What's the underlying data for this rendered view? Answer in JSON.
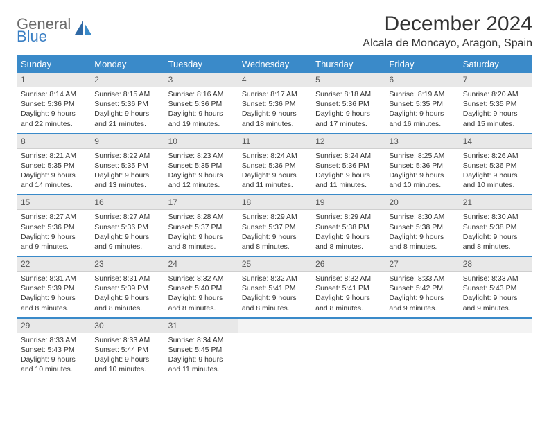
{
  "brand": {
    "part1": "General",
    "part2": "Blue",
    "color1": "#6a6a6a",
    "color2": "#3a7fc4"
  },
  "title": "December 2024",
  "location": "Alcala de Moncayo, Aragon, Spain",
  "header_bg": "#3a8ac9",
  "header_fg": "#ffffff",
  "daynum_bg": "#e8e8e8",
  "border_color": "#3a8ac9",
  "day_headers": [
    "Sunday",
    "Monday",
    "Tuesday",
    "Wednesday",
    "Thursday",
    "Friday",
    "Saturday"
  ],
  "weeks": [
    [
      {
        "n": "1",
        "sr": "Sunrise: 8:14 AM",
        "ss": "Sunset: 5:36 PM",
        "d1": "Daylight: 9 hours",
        "d2": "and 22 minutes."
      },
      {
        "n": "2",
        "sr": "Sunrise: 8:15 AM",
        "ss": "Sunset: 5:36 PM",
        "d1": "Daylight: 9 hours",
        "d2": "and 21 minutes."
      },
      {
        "n": "3",
        "sr": "Sunrise: 8:16 AM",
        "ss": "Sunset: 5:36 PM",
        "d1": "Daylight: 9 hours",
        "d2": "and 19 minutes."
      },
      {
        "n": "4",
        "sr": "Sunrise: 8:17 AM",
        "ss": "Sunset: 5:36 PM",
        "d1": "Daylight: 9 hours",
        "d2": "and 18 minutes."
      },
      {
        "n": "5",
        "sr": "Sunrise: 8:18 AM",
        "ss": "Sunset: 5:36 PM",
        "d1": "Daylight: 9 hours",
        "d2": "and 17 minutes."
      },
      {
        "n": "6",
        "sr": "Sunrise: 8:19 AM",
        "ss": "Sunset: 5:35 PM",
        "d1": "Daylight: 9 hours",
        "d2": "and 16 minutes."
      },
      {
        "n": "7",
        "sr": "Sunrise: 8:20 AM",
        "ss": "Sunset: 5:35 PM",
        "d1": "Daylight: 9 hours",
        "d2": "and 15 minutes."
      }
    ],
    [
      {
        "n": "8",
        "sr": "Sunrise: 8:21 AM",
        "ss": "Sunset: 5:35 PM",
        "d1": "Daylight: 9 hours",
        "d2": "and 14 minutes."
      },
      {
        "n": "9",
        "sr": "Sunrise: 8:22 AM",
        "ss": "Sunset: 5:35 PM",
        "d1": "Daylight: 9 hours",
        "d2": "and 13 minutes."
      },
      {
        "n": "10",
        "sr": "Sunrise: 8:23 AM",
        "ss": "Sunset: 5:35 PM",
        "d1": "Daylight: 9 hours",
        "d2": "and 12 minutes."
      },
      {
        "n": "11",
        "sr": "Sunrise: 8:24 AM",
        "ss": "Sunset: 5:36 PM",
        "d1": "Daylight: 9 hours",
        "d2": "and 11 minutes."
      },
      {
        "n": "12",
        "sr": "Sunrise: 8:24 AM",
        "ss": "Sunset: 5:36 PM",
        "d1": "Daylight: 9 hours",
        "d2": "and 11 minutes."
      },
      {
        "n": "13",
        "sr": "Sunrise: 8:25 AM",
        "ss": "Sunset: 5:36 PM",
        "d1": "Daylight: 9 hours",
        "d2": "and 10 minutes."
      },
      {
        "n": "14",
        "sr": "Sunrise: 8:26 AM",
        "ss": "Sunset: 5:36 PM",
        "d1": "Daylight: 9 hours",
        "d2": "and 10 minutes."
      }
    ],
    [
      {
        "n": "15",
        "sr": "Sunrise: 8:27 AM",
        "ss": "Sunset: 5:36 PM",
        "d1": "Daylight: 9 hours",
        "d2": "and 9 minutes."
      },
      {
        "n": "16",
        "sr": "Sunrise: 8:27 AM",
        "ss": "Sunset: 5:36 PM",
        "d1": "Daylight: 9 hours",
        "d2": "and 9 minutes."
      },
      {
        "n": "17",
        "sr": "Sunrise: 8:28 AM",
        "ss": "Sunset: 5:37 PM",
        "d1": "Daylight: 9 hours",
        "d2": "and 8 minutes."
      },
      {
        "n": "18",
        "sr": "Sunrise: 8:29 AM",
        "ss": "Sunset: 5:37 PM",
        "d1": "Daylight: 9 hours",
        "d2": "and 8 minutes."
      },
      {
        "n": "19",
        "sr": "Sunrise: 8:29 AM",
        "ss": "Sunset: 5:38 PM",
        "d1": "Daylight: 9 hours",
        "d2": "and 8 minutes."
      },
      {
        "n": "20",
        "sr": "Sunrise: 8:30 AM",
        "ss": "Sunset: 5:38 PM",
        "d1": "Daylight: 9 hours",
        "d2": "and 8 minutes."
      },
      {
        "n": "21",
        "sr": "Sunrise: 8:30 AM",
        "ss": "Sunset: 5:38 PM",
        "d1": "Daylight: 9 hours",
        "d2": "and 8 minutes."
      }
    ],
    [
      {
        "n": "22",
        "sr": "Sunrise: 8:31 AM",
        "ss": "Sunset: 5:39 PM",
        "d1": "Daylight: 9 hours",
        "d2": "and 8 minutes."
      },
      {
        "n": "23",
        "sr": "Sunrise: 8:31 AM",
        "ss": "Sunset: 5:39 PM",
        "d1": "Daylight: 9 hours",
        "d2": "and 8 minutes."
      },
      {
        "n": "24",
        "sr": "Sunrise: 8:32 AM",
        "ss": "Sunset: 5:40 PM",
        "d1": "Daylight: 9 hours",
        "d2": "and 8 minutes."
      },
      {
        "n": "25",
        "sr": "Sunrise: 8:32 AM",
        "ss": "Sunset: 5:41 PM",
        "d1": "Daylight: 9 hours",
        "d2": "and 8 minutes."
      },
      {
        "n": "26",
        "sr": "Sunrise: 8:32 AM",
        "ss": "Sunset: 5:41 PM",
        "d1": "Daylight: 9 hours",
        "d2": "and 8 minutes."
      },
      {
        "n": "27",
        "sr": "Sunrise: 8:33 AM",
        "ss": "Sunset: 5:42 PM",
        "d1": "Daylight: 9 hours",
        "d2": "and 9 minutes."
      },
      {
        "n": "28",
        "sr": "Sunrise: 8:33 AM",
        "ss": "Sunset: 5:43 PM",
        "d1": "Daylight: 9 hours",
        "d2": "and 9 minutes."
      }
    ],
    [
      {
        "n": "29",
        "sr": "Sunrise: 8:33 AM",
        "ss": "Sunset: 5:43 PM",
        "d1": "Daylight: 9 hours",
        "d2": "and 10 minutes."
      },
      {
        "n": "30",
        "sr": "Sunrise: 8:33 AM",
        "ss": "Sunset: 5:44 PM",
        "d1": "Daylight: 9 hours",
        "d2": "and 10 minutes."
      },
      {
        "n": "31",
        "sr": "Sunrise: 8:34 AM",
        "ss": "Sunset: 5:45 PM",
        "d1": "Daylight: 9 hours",
        "d2": "and 11 minutes."
      },
      {
        "empty": true
      },
      {
        "empty": true
      },
      {
        "empty": true
      },
      {
        "empty": true
      }
    ]
  ]
}
